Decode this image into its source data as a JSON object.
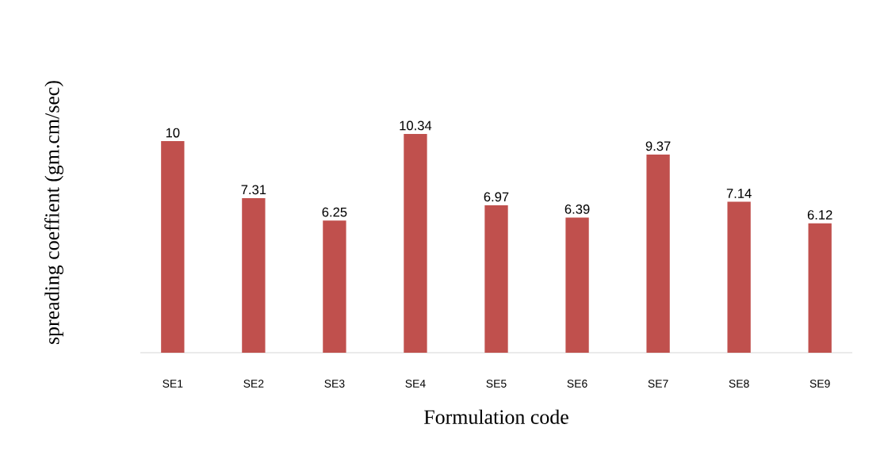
{
  "chart_data": {
    "type": "bar",
    "xlabel": "Formulation code",
    "ylabel": "spreading coeffient (gm.cm/sec)",
    "categories": [
      "SE1",
      "SE2",
      "SE3",
      "SE4",
      "SE5",
      "SE6",
      "SE7",
      "SE8",
      "SE9"
    ],
    "values": [
      10,
      7.31,
      6.25,
      10.34,
      6.97,
      6.39,
      9.37,
      7.14,
      6.12
    ],
    "color": "#c0504d",
    "data_labels": true
  }
}
